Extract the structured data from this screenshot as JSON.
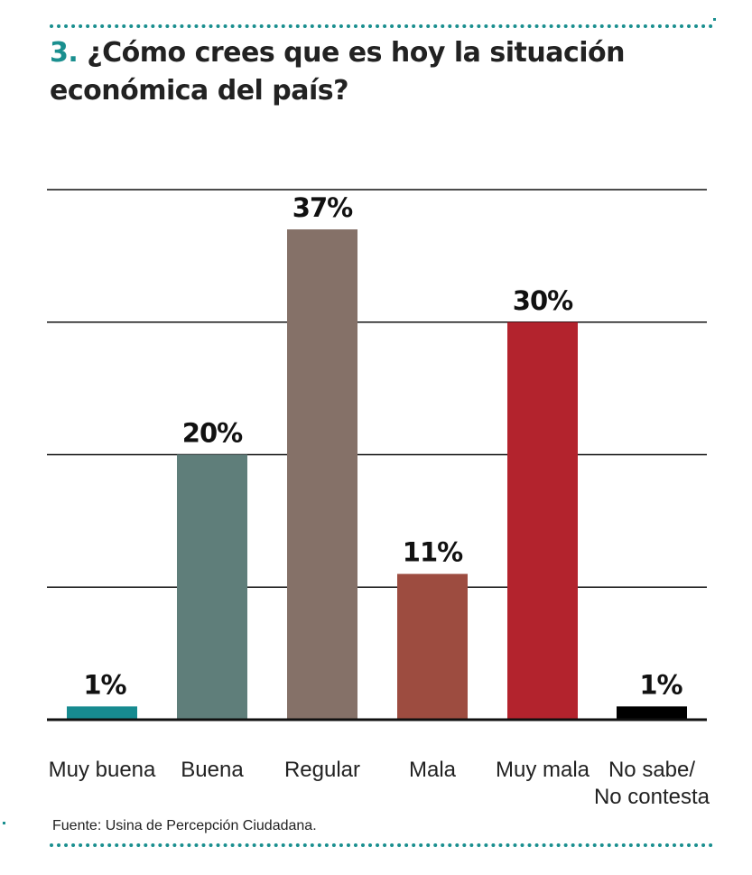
{
  "title": {
    "number": "3.",
    "text": "¿Cómo crees que es hoy la situación económica del país?"
  },
  "source": "Fuente: Usina de Percepción Ciudadana.",
  "colors": {
    "accent": "#1a8f8f",
    "bars": [
      "#178b90",
      "#5f7e7a",
      "#857168",
      "#9d4c40",
      "#b3232d",
      "#000000"
    ]
  },
  "chart_data": {
    "type": "bar",
    "categories": [
      "Muy buena",
      "Buena",
      "Regular",
      "Mala",
      "Muy mala",
      "No sabe/\nNo contesta"
    ],
    "values": [
      1,
      20,
      37,
      11,
      30,
      1
    ],
    "value_labels": [
      "1%",
      "20%",
      "37%",
      "11%",
      "30%",
      "1%"
    ],
    "ylim": [
      0,
      40
    ],
    "grid": true,
    "xlabel": "",
    "ylabel": ""
  }
}
